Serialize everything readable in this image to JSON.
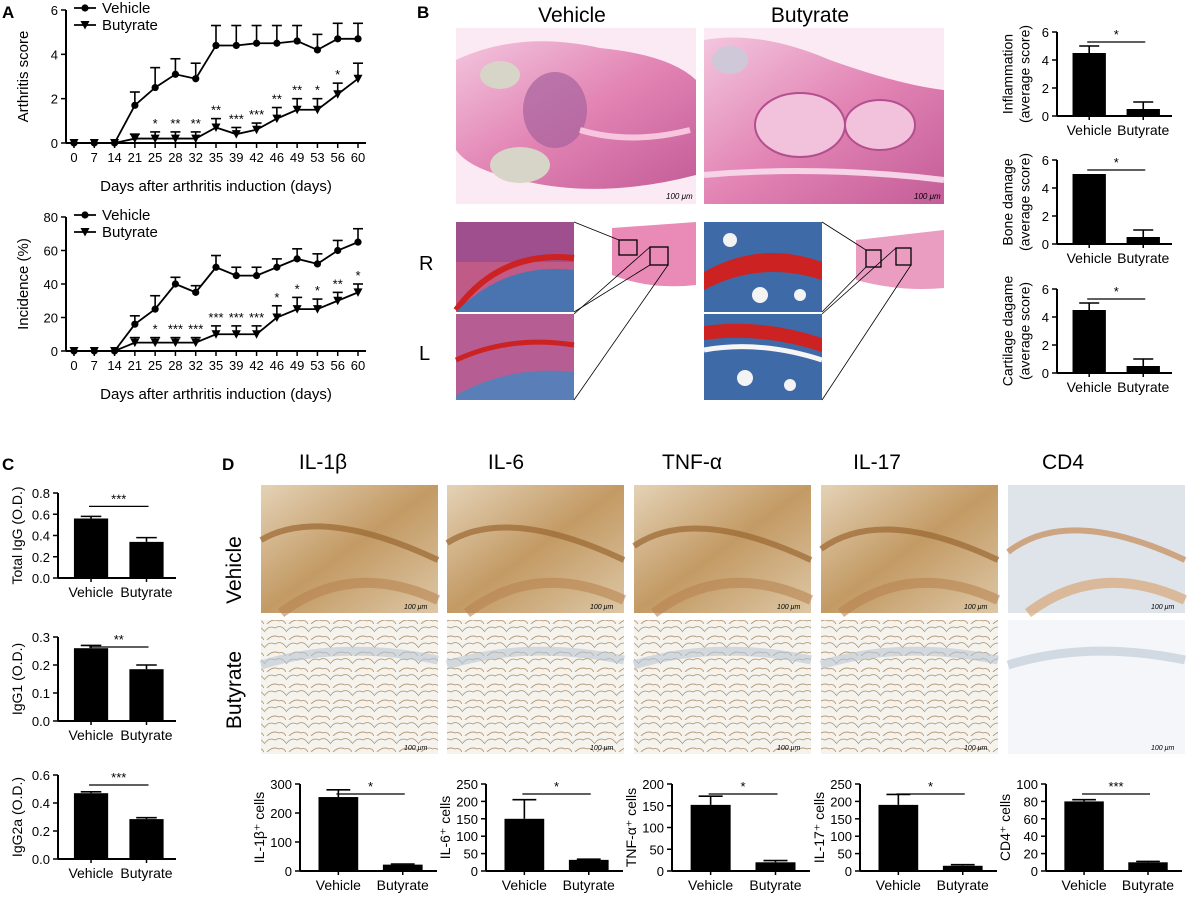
{
  "colors": {
    "he_pink": "#e489b8",
    "he_purple": "#9b5b9a",
    "he_light": "#f6dcea",
    "safo_blue": "#3b63a6",
    "safo_red": "#cc2222",
    "ihc_brown": "#b9854a",
    "ihc_bg": "#ece3d2",
    "ihc_fat": "#f4f2ec"
  },
  "labels": {
    "A": "A",
    "B": "B",
    "C": "C",
    "D": "D",
    "vehicle": "Vehicle",
    "butyrate": "Butyrate",
    "R": "R",
    "L": "L",
    "scale": "100 μm"
  },
  "ihc_headers": [
    "IL-1β",
    "IL-6",
    "TNF-α",
    "IL-17",
    "CD4"
  ],
  "chart_data": [
    {
      "id": "A-top",
      "type": "line",
      "xlabel": "Days after arthritis induction (days)",
      "ylabel": "Arthritis score",
      "x": [
        "0",
        "7",
        "14",
        "21",
        "25",
        "28",
        "32",
        "35",
        "39",
        "42",
        "46",
        "49",
        "53",
        "56",
        "60"
      ],
      "ylim": [
        0,
        6
      ],
      "yticks": [
        "0",
        "2",
        "4",
        "6"
      ],
      "series": [
        {
          "name": "Vehicle",
          "marker": "circle",
          "values": [
            0,
            0,
            0,
            1.7,
            2.5,
            3.1,
            2.9,
            4.4,
            4.4,
            4.5,
            4.5,
            4.6,
            4.2,
            4.7,
            4.7
          ],
          "err": [
            0,
            0,
            0,
            0.6,
            0.9,
            0.7,
            0.7,
            0.9,
            0.9,
            0.8,
            0.8,
            0.7,
            0.7,
            0.7,
            0.7
          ]
        },
        {
          "name": "Butyrate",
          "marker": "triangle-down",
          "values": [
            0,
            0,
            0,
            0.2,
            0.2,
            0.2,
            0.2,
            0.7,
            0.4,
            0.6,
            1.1,
            1.5,
            1.5,
            2.2,
            2.9
          ],
          "err": [
            0,
            0,
            0,
            0.2,
            0.3,
            0.3,
            0.3,
            0.4,
            0.3,
            0.3,
            0.5,
            0.5,
            0.5,
            0.5,
            0.7
          ]
        }
      ],
      "annotations": [
        "",
        "",
        "",
        "",
        "*",
        "**",
        "**",
        "**",
        "***",
        "***",
        "**",
        "**",
        "*",
        "*",
        ""
      ]
    },
    {
      "id": "A-bottom",
      "type": "line",
      "xlabel": "Days after arthritis induction (days)",
      "ylabel": "Incidence (%)",
      "x": [
        "0",
        "7",
        "14",
        "21",
        "25",
        "28",
        "32",
        "35",
        "39",
        "42",
        "46",
        "49",
        "53",
        "56",
        "60"
      ],
      "ylim": [
        0,
        80
      ],
      "yticks": [
        "0",
        "20",
        "40",
        "60",
        "80"
      ],
      "series": [
        {
          "name": "Vehicle",
          "marker": "circle",
          "values": [
            0,
            0,
            0,
            16,
            25,
            40,
            35,
            50,
            45,
            45,
            50,
            55,
            52,
            60,
            65
          ],
          "err": [
            0,
            0,
            0,
            5,
            8,
            4,
            4,
            7,
            5,
            5,
            5,
            6,
            6,
            6,
            8
          ]
        },
        {
          "name": "Butyrate",
          "marker": "triangle-down",
          "values": [
            0,
            0,
            0,
            5,
            5,
            5,
            5,
            10,
            10,
            10,
            20,
            25,
            25,
            30,
            35
          ],
          "err": [
            0,
            0,
            0,
            3,
            3,
            3,
            3,
            5,
            5,
            5,
            7,
            7,
            6,
            5,
            5
          ]
        }
      ],
      "annotations": [
        "",
        "",
        "",
        "",
        "*",
        "***",
        "***",
        "***",
        "***",
        "***",
        "*",
        "*",
        "*",
        "**",
        "*"
      ]
    },
    {
      "id": "B1",
      "type": "bar",
      "ylabel": "Inflammation (average score)",
      "categories": [
        "Vehicle",
        "Butyrate"
      ],
      "values": [
        4.5,
        0.5
      ],
      "err": [
        0.5,
        0.5
      ],
      "ylim": [
        0,
        6
      ],
      "yticks": [
        "0",
        "2",
        "4",
        "6"
      ],
      "sig": "*"
    },
    {
      "id": "B2",
      "type": "bar",
      "ylabel": "Bone damage (average score)",
      "categories": [
        "Vehicle",
        "Butyrate"
      ],
      "values": [
        5.0,
        0.5
      ],
      "err": [
        0,
        0.5
      ],
      "ylim": [
        0,
        6
      ],
      "yticks": [
        "0",
        "2",
        "4",
        "6"
      ],
      "sig": "*"
    },
    {
      "id": "B3",
      "type": "bar",
      "ylabel": "Cartilage dagame (average score)",
      "categories": [
        "Vehicle",
        "Butyrate"
      ],
      "values": [
        4.5,
        0.5
      ],
      "err": [
        0.5,
        0.5
      ],
      "ylim": [
        0,
        6
      ],
      "yticks": [
        "0",
        "2",
        "4",
        "6"
      ],
      "sig": "*"
    },
    {
      "id": "C1",
      "type": "bar",
      "ylabel": "Total IgG (O.D.)",
      "categories": [
        "Vehicle",
        "Butyrate"
      ],
      "values": [
        0.56,
        0.34
      ],
      "err": [
        0.02,
        0.04
      ],
      "ylim": [
        0,
        0.8
      ],
      "yticks": [
        "0.0",
        "0.2",
        "0.4",
        "0.6",
        "0.8"
      ],
      "sig": "***"
    },
    {
      "id": "C2",
      "type": "bar",
      "ylabel": "IgG1 (O.D.)",
      "categories": [
        "Vehicle",
        "Butyrate"
      ],
      "values": [
        0.26,
        0.185
      ],
      "err": [
        0.01,
        0.015
      ],
      "ylim": [
        0,
        0.3
      ],
      "yticks": [
        "0.0",
        "0.1",
        "0.2",
        "0.3"
      ],
      "sig": "**"
    },
    {
      "id": "C3",
      "type": "bar",
      "ylabel": "IgG2a (O.D.)",
      "categories": [
        "Vehicle",
        "Butyrate"
      ],
      "values": [
        0.47,
        0.285
      ],
      "err": [
        0.01,
        0.01
      ],
      "ylim": [
        0,
        0.6
      ],
      "yticks": [
        "0.0",
        "0.2",
        "0.4",
        "0.6"
      ],
      "sig": "***"
    },
    {
      "id": "D1",
      "type": "bar",
      "ylabel": "IL-1β⁺ cells",
      "categories": [
        "Vehicle",
        "Butyrate"
      ],
      "values": [
        255,
        22
      ],
      "err": [
        25,
        2
      ],
      "ylim": [
        0,
        300
      ],
      "yticks": [
        "0",
        "100",
        "200",
        "300"
      ],
      "sig": "*"
    },
    {
      "id": "D2",
      "type": "bar",
      "ylabel": "IL-6⁺ cells",
      "categories": [
        "Vehicle",
        "Butyrate"
      ],
      "values": [
        150,
        32
      ],
      "err": [
        55,
        2
      ],
      "ylim": [
        0,
        250
      ],
      "yticks": [
        "0",
        "50",
        "100",
        "150",
        "200",
        "250"
      ],
      "sig": "*"
    },
    {
      "id": "D3",
      "type": "bar",
      "ylabel": "TNF-α⁺ cells",
      "categories": [
        "Vehicle",
        "Butyrate"
      ],
      "values": [
        152,
        20
      ],
      "err": [
        20,
        4
      ],
      "ylim": [
        0,
        200
      ],
      "yticks": [
        "0",
        "50",
        "100",
        "150",
        "200"
      ],
      "sig": "*"
    },
    {
      "id": "D4",
      "type": "bar",
      "ylabel": "IL-17⁺ cells",
      "categories": [
        "Vehicle",
        "Butyrate"
      ],
      "values": [
        190,
        15
      ],
      "err": [
        30,
        3
      ],
      "ylim": [
        0,
        250
      ],
      "yticks": [
        "0",
        "50",
        "100",
        "150",
        "200",
        "250"
      ],
      "sig": "*"
    },
    {
      "id": "D5",
      "type": "bar",
      "ylabel": "CD4⁺ cells",
      "categories": [
        "Vehicle",
        "Butyrate"
      ],
      "values": [
        80,
        10
      ],
      "err": [
        2,
        1
      ],
      "ylim": [
        0,
        100
      ],
      "yticks": [
        "0",
        "20",
        "40",
        "60",
        "80",
        "100"
      ],
      "sig": "***"
    }
  ]
}
